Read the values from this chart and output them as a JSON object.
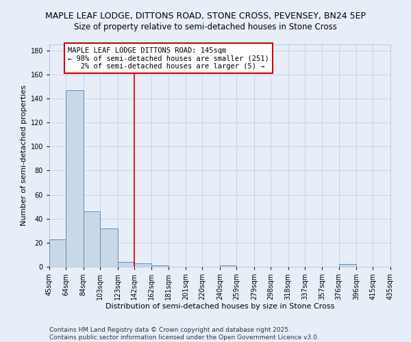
{
  "title1": "MAPLE LEAF LODGE, DITTONS ROAD, STONE CROSS, PEVENSEY, BN24 5EP",
  "title2": "Size of property relative to semi-detached houses in Stone Cross",
  "xlabel": "Distribution of semi-detached houses by size in Stone Cross",
  "ylabel": "Number of semi-detached properties",
  "categories": [
    "45sqm",
    "64sqm",
    "84sqm",
    "103sqm",
    "123sqm",
    "142sqm",
    "162sqm",
    "181sqm",
    "201sqm",
    "220sqm",
    "240sqm",
    "259sqm",
    "279sqm",
    "298sqm",
    "318sqm",
    "337sqm",
    "357sqm",
    "376sqm",
    "396sqm",
    "415sqm",
    "435sqm"
  ],
  "bar_lefts": [
    45,
    64,
    84,
    103,
    123,
    142,
    162,
    181,
    201,
    220,
    240,
    259,
    279,
    298,
    318,
    337,
    357,
    376,
    396,
    415
  ],
  "bar_widths": [
    19,
    20,
    19,
    20,
    19,
    20,
    19,
    20,
    19,
    20,
    19,
    20,
    19,
    20,
    19,
    20,
    19,
    20,
    19,
    20
  ],
  "bar_heights": [
    23,
    147,
    46,
    32,
    4,
    3,
    1,
    0,
    0,
    0,
    1,
    0,
    0,
    0,
    0,
    0,
    0,
    2,
    0,
    0
  ],
  "bar_color": "#c8d8e8",
  "bar_edge_color": "#5b8db8",
  "red_line_x": 142,
  "ylim": [
    0,
    185
  ],
  "xlim": [
    45,
    435
  ],
  "yticks": [
    0,
    20,
    40,
    60,
    80,
    100,
    120,
    140,
    160,
    180
  ],
  "property_label": "MAPLE LEAF LODGE DITTONS ROAD: 145sqm",
  "smaller_label": "← 98% of semi-detached houses are smaller (251)",
  "larger_label": "   2% of semi-detached houses are larger (5) →",
  "legend_box_color": "#ffffff",
  "legend_box_edge": "#cc0000",
  "grid_color": "#c8d4e4",
  "background_color": "#e8eef8",
  "footnote1": "Contains HM Land Registry data © Crown copyright and database right 2025.",
  "footnote2": "Contains public sector information licensed under the Open Government Licence v3.0.",
  "title1_fontsize": 9.0,
  "title2_fontsize": 8.5,
  "axis_label_fontsize": 8.0,
  "tick_fontsize": 7.0,
  "legend_fontsize": 7.5,
  "footnote_fontsize": 6.5
}
